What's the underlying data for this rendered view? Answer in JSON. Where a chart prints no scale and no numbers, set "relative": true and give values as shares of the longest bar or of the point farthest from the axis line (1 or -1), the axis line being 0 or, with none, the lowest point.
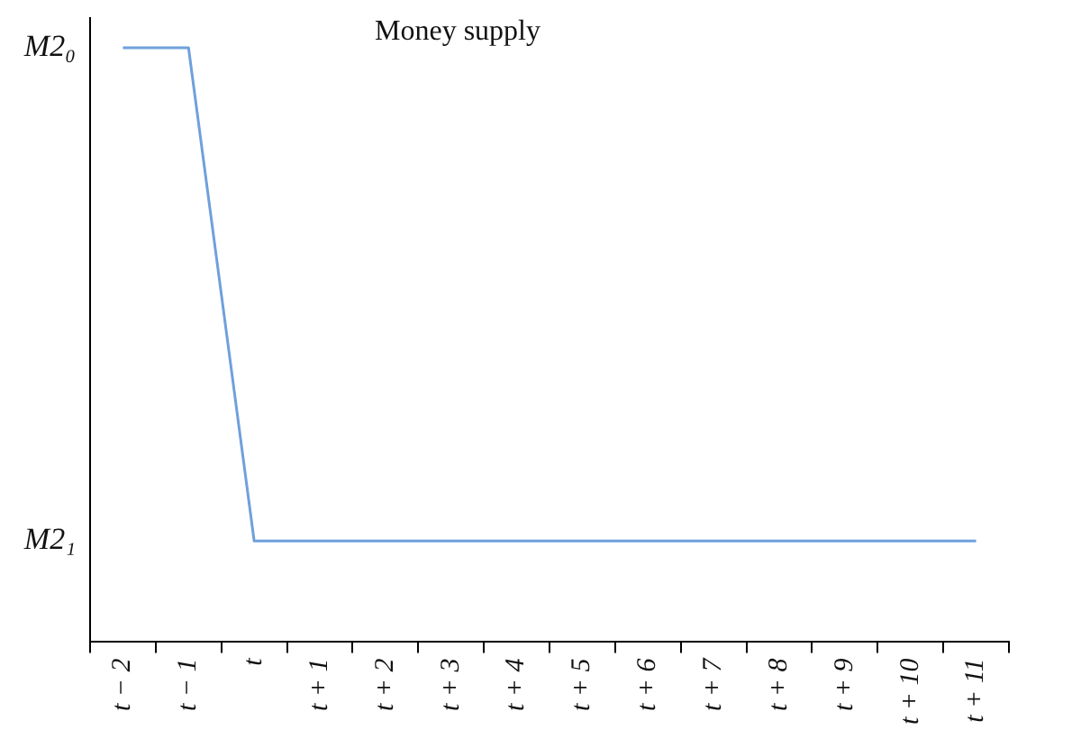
{
  "chart_data": {
    "type": "line",
    "title": "Money supply",
    "relative": true,
    "categories": [
      "t − 2",
      "t − 1",
      "t",
      "t + 1",
      "t + 2",
      "t + 3",
      "t + 4",
      "t + 5",
      "t + 6",
      "t + 7",
      "t + 8",
      "t + 9",
      "t + 10",
      "t + 11"
    ],
    "series": [
      {
        "color": "#6fa0dc",
        "values": [
          1,
          1,
          0.17,
          0.17,
          0.17,
          0.17,
          0.17,
          0.17,
          0.17,
          0.17,
          0.17,
          0.17,
          0.17,
          0.17
        ]
      }
    ],
    "annotations": [
      "M2₀",
      "M2₁"
    ],
    "grid": false,
    "legend": false,
    "marker": "none",
    "line_style": "solid"
  }
}
